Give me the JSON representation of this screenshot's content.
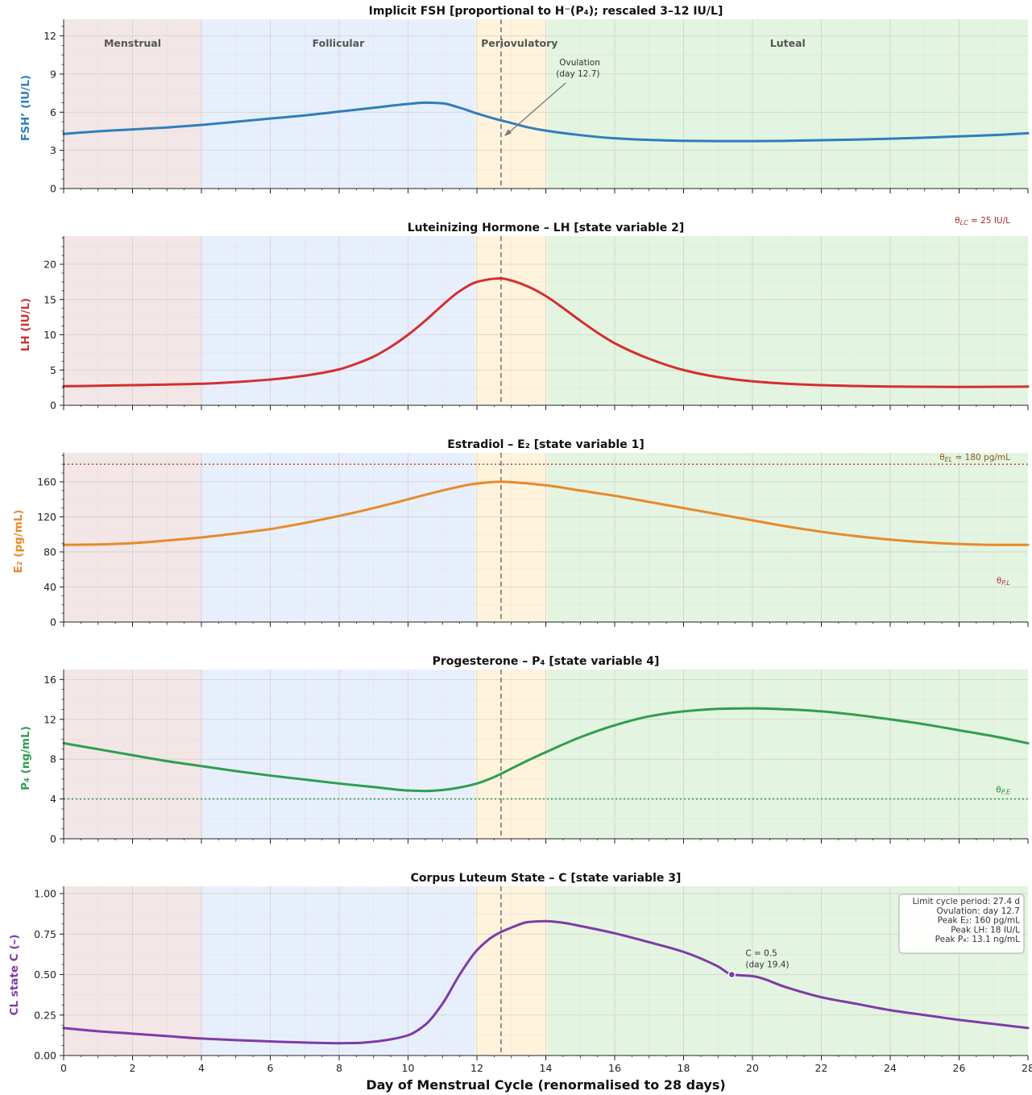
{
  "chart_data": {
    "type": "line",
    "xlabel": "Day of Menstrual Cycle  (renormalised to 28 days)",
    "xlim": [
      0,
      28
    ],
    "x_ticks": [
      0,
      2,
      4,
      6,
      8,
      10,
      12,
      14,
      16,
      18,
      20,
      22,
      24,
      26,
      28
    ],
    "grid": true,
    "ovulation_day": 12.7,
    "phases": [
      {
        "name": "Menstrual",
        "start": 0,
        "end": 4,
        "color": "#f2e6e6"
      },
      {
        "name": "Follicular",
        "start": 4,
        "end": 11.95,
        "color": "#e8effc"
      },
      {
        "name": "Periovulatory",
        "start": 11.95,
        "end": 14.05,
        "color": "#fff3dc"
      },
      {
        "name": "Luteal",
        "start": 14.05,
        "end": 28,
        "color": "#e3f4e0"
      }
    ],
    "panels": [
      {
        "title": "Implicit FSH  [proportional to H⁻(P₄); rescaled 3–12 IU/L]",
        "ylabel": "FSH’  (IU/L)",
        "color": "#2f7ebc",
        "ylim": [
          0,
          13.3
        ],
        "yticks": [
          0,
          3,
          6,
          9,
          12
        ],
        "show_phase_labels": true,
        "annotation": {
          "text": [
            "Ovulation",
            "(day 12.7)"
          ],
          "x": 12.7,
          "y": 4.1,
          "text_x": 15,
          "text_y": 9.7
        },
        "series": {
          "x": [
            0,
            1,
            2,
            3,
            4,
            5,
            6,
            7,
            8,
            9,
            10,
            10.5,
            11,
            11.5,
            12,
            12.5,
            13,
            13.5,
            14,
            15,
            16,
            17,
            18,
            19,
            20,
            21,
            22,
            23,
            24,
            25,
            26,
            27,
            28
          ],
          "y": [
            4.3,
            4.5,
            4.65,
            4.8,
            5.0,
            5.25,
            5.5,
            5.75,
            6.05,
            6.35,
            6.65,
            6.75,
            6.7,
            6.35,
            5.9,
            5.5,
            5.15,
            4.8,
            4.55,
            4.2,
            3.95,
            3.82,
            3.75,
            3.73,
            3.73,
            3.75,
            3.8,
            3.85,
            3.92,
            4.0,
            4.1,
            4.2,
            4.35
          ]
        }
      },
      {
        "title": "Luteinizing Hormone  –  LH  [state variable 2]",
        "ylabel": "LH  (IU/L)",
        "color": "#d32f2f",
        "ylim": [
          0,
          24
        ],
        "yticks": [
          0,
          5,
          10,
          15,
          20
        ],
        "threshold_label": {
          "text": "θ",
          "sub": "LC",
          "rest": " = 25 IU/L",
          "color": "#a52a2a"
        },
        "series": {
          "x": [
            0,
            2,
            4,
            5,
            6,
            7,
            8,
            8.5,
            9,
            9.5,
            10,
            10.5,
            11,
            11.5,
            12,
            12.5,
            12.7,
            13,
            13.5,
            14,
            14.5,
            15,
            15.5,
            16,
            17,
            18,
            19,
            20,
            21,
            22,
            24,
            26,
            28
          ],
          "y": [
            2.7,
            2.85,
            3.05,
            3.3,
            3.65,
            4.2,
            5.1,
            5.9,
            6.9,
            8.3,
            10.0,
            12.0,
            14.2,
            16.2,
            17.5,
            17.95,
            18.0,
            17.7,
            16.8,
            15.5,
            13.8,
            12.0,
            10.3,
            8.8,
            6.6,
            5.0,
            4.0,
            3.4,
            3.05,
            2.85,
            2.65,
            2.6,
            2.65
          ]
        }
      },
      {
        "title": "Estradiol  –  E₂  [state variable 1]",
        "ylabel": "E₂  (pg/mL)",
        "color": "#e8892b",
        "ylim": [
          0,
          193
        ],
        "yticks": [
          0,
          40,
          80,
          120,
          160
        ],
        "hline": {
          "y": 180,
          "color": "#b0643c"
        },
        "threshold_label": {
          "text": "θ",
          "sub": "EL",
          "rest": " = 180 pg/mL",
          "color": "#8a5a1f"
        },
        "threshold_label_2": {
          "text": "θ",
          "sub": "P,L",
          "rest": "",
          "color": "#b23a3a"
        },
        "series": {
          "x": [
            0,
            1,
            2,
            3,
            4,
            5,
            6,
            7,
            8,
            9,
            10,
            11,
            12,
            12.7,
            13,
            14,
            15,
            16,
            17,
            18,
            19,
            20,
            21,
            22,
            23,
            24,
            25,
            26,
            27,
            28
          ],
          "y": [
            88,
            88.5,
            90,
            93,
            96.5,
            101,
            106,
            113,
            121,
            130,
            140,
            150,
            158,
            160,
            159.5,
            156,
            150,
            144,
            137,
            130,
            123,
            116,
            109,
            103,
            98,
            94,
            91,
            89,
            88,
            88
          ]
        }
      },
      {
        "title": "Progesterone  –  P₄  [state variable 4]",
        "ylabel": "P₄  (ng/mL)",
        "color": "#2f9e50",
        "ylim": [
          0,
          17
        ],
        "yticks": [
          0,
          4,
          8,
          12,
          16
        ],
        "hline": {
          "y": 4,
          "color": "#3a9a4a"
        },
        "threshold_label": {
          "text": "θ",
          "sub": "P,E",
          "rest": "",
          "color": "#2e8b3e"
        },
        "series": {
          "x": [
            0,
            1,
            2,
            3,
            4,
            5,
            6,
            7,
            8,
            9,
            10,
            10.5,
            11,
            11.5,
            12,
            12.5,
            13,
            13.5,
            14,
            15,
            16,
            17,
            18,
            19,
            20,
            21,
            22,
            23,
            24,
            25,
            26,
            27,
            28
          ],
          "y": [
            9.6,
            9.0,
            8.4,
            7.8,
            7.3,
            6.8,
            6.35,
            5.95,
            5.55,
            5.2,
            4.85,
            4.8,
            4.9,
            5.15,
            5.55,
            6.2,
            7.05,
            7.9,
            8.7,
            10.2,
            11.4,
            12.3,
            12.8,
            13.05,
            13.1,
            13.0,
            12.8,
            12.45,
            12.0,
            11.5,
            10.9,
            10.3,
            9.6
          ]
        }
      },
      {
        "title": "Corpus Luteum State  –  C  [state variable 3]",
        "ylabel": "CL state  C  (–)",
        "color": "#7e3ba8",
        "ylim": [
          0,
          1.045
        ],
        "yticks": [
          0.0,
          0.25,
          0.5,
          0.75,
          1.0
        ],
        "ytick_labels": [
          "0.00",
          "0.25",
          "0.50",
          "0.75",
          "1.00"
        ],
        "marker": {
          "x": 19.4,
          "y": 0.5,
          "text": [
            "C = 0.5",
            "(day 19.4)"
          ]
        },
        "info_box": [
          "Limit cycle period:  27.4 d",
          "Ovulation:  day 12.7",
          "Peak E₂:  160 pg/mL",
          "Peak LH:  18 IU/L",
          "Peak P₄:  13.1 ng/mL"
        ],
        "series": {
          "x": [
            0,
            1,
            2,
            3,
            4,
            5,
            6,
            7,
            8,
            8.5,
            9,
            9.5,
            10,
            10.5,
            11,
            11.5,
            12,
            12.5,
            13,
            13.5,
            14,
            14.5,
            15,
            16,
            17,
            18,
            19,
            19.4,
            20,
            21,
            22,
            23,
            24,
            25,
            26,
            27,
            28
          ],
          "y": [
            0.17,
            0.15,
            0.135,
            0.12,
            0.105,
            0.095,
            0.087,
            0.08,
            0.076,
            0.077,
            0.085,
            0.1,
            0.125,
            0.19,
            0.32,
            0.5,
            0.65,
            0.74,
            0.79,
            0.825,
            0.83,
            0.82,
            0.8,
            0.755,
            0.7,
            0.64,
            0.55,
            0.5,
            0.49,
            0.42,
            0.36,
            0.32,
            0.28,
            0.25,
            0.22,
            0.195,
            0.17
          ]
        }
      }
    ]
  }
}
